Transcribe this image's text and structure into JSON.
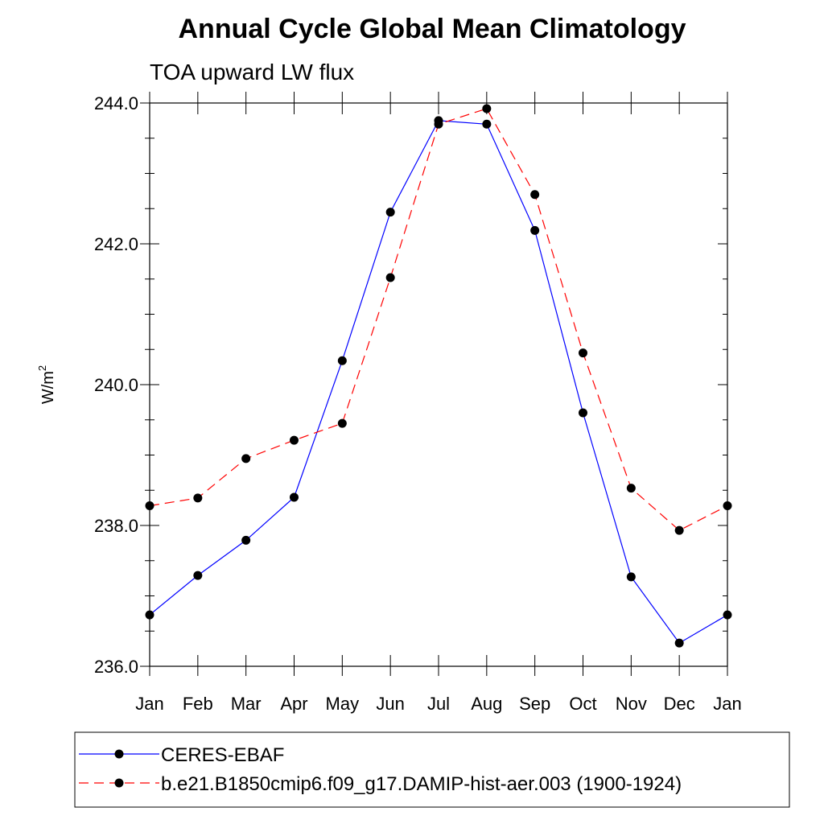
{
  "chart_data": {
    "type": "line",
    "title": "Annual Cycle Global Mean Climatology",
    "subtitle": "TOA upward LW flux",
    "ylabel": "W/m",
    "ylabel_superscript": "2",
    "xlabel": "",
    "categories": [
      "Jan",
      "Feb",
      "Mar",
      "Apr",
      "May",
      "Jun",
      "Jul",
      "Aug",
      "Sep",
      "Oct",
      "Nov",
      "Dec",
      "Jan"
    ],
    "ylim": [
      236.0,
      244.0
    ],
    "y_major_ticks": [
      236.0,
      238.0,
      240.0,
      242.0,
      244.0
    ],
    "y_tick_labels": [
      "236.0",
      "238.0",
      "240.0",
      "242.0",
      "244.0"
    ],
    "grid": false,
    "legend_position": "bottom",
    "series": [
      {
        "name": "CERES-EBAF",
        "color": "#0000ff",
        "line_style": "solid",
        "marker": "filled-circle",
        "values": [
          236.73,
          237.29,
          237.79,
          238.4,
          240.34,
          242.45,
          243.75,
          243.7,
          242.19,
          239.6,
          237.27,
          236.33,
          236.73
        ]
      },
      {
        "name": "b.e21.B1850cmip6.f09_g17.DAMIP-hist-aer.003 (1900-1924)",
        "color": "#ff0000",
        "line_style": "dashed",
        "marker": "filled-circle",
        "values": [
          238.28,
          238.39,
          238.95,
          239.21,
          239.45,
          241.52,
          243.7,
          243.92,
          242.7,
          240.45,
          238.53,
          237.93,
          238.28
        ]
      }
    ]
  }
}
